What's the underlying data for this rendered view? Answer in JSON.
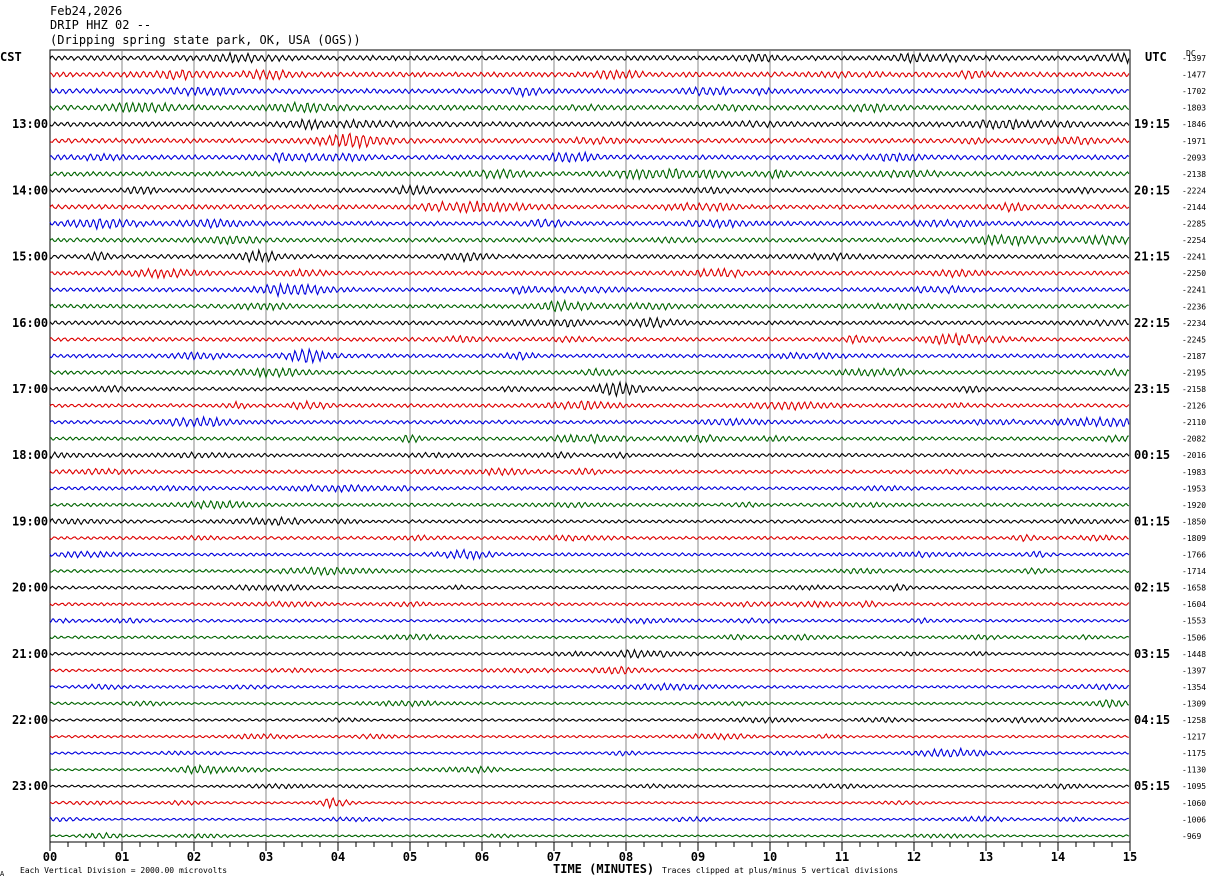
{
  "header": {
    "date": "Feb24,2026",
    "station": "DRIP HHZ 02 --",
    "location": "(Dripping spring state park, OK, USA (OGS))"
  },
  "left_axis_title": "CST",
  "right_axis_title": "UTC",
  "dc_title": "DC",
  "footer": {
    "scale_note": "Each Vertical Division = 2000.00 microvolts",
    "clip_note": "Traces clipped at plus/minus 5 vertical divisions",
    "mark": "A"
  },
  "chart_data": {
    "type": "line",
    "title": "",
    "xlabel": "TIME (MINUTES)",
    "xlim": [
      0,
      15
    ],
    "x_ticks": [
      "00",
      "01",
      "02",
      "03",
      "04",
      "05",
      "06",
      "07",
      "08",
      "09",
      "10",
      "11",
      "12",
      "13",
      "14",
      "15"
    ],
    "trace_count": 48,
    "trace_colors": [
      "#000000",
      "#dd0000",
      "#0000dd",
      "#006400"
    ],
    "left_hour_labels": [
      "13:00",
      "14:00",
      "15:00",
      "16:00",
      "17:00",
      "18:00",
      "19:00",
      "20:00",
      "21:00",
      "22:00",
      "23:00"
    ],
    "right_hour_labels": [
      "19:15",
      "20:15",
      "21:15",
      "22:15",
      "23:15",
      "00:15",
      "01:15",
      "02:15",
      "03:15",
      "04:15",
      "05:15"
    ],
    "first_labeled_trace": 4,
    "dc_offsets": [
      -1397,
      -1477,
      -1702,
      -1803,
      -1846,
      -1971,
      -2093,
      -2138,
      -2224,
      -2144,
      -2285,
      -2254,
      -2241,
      -2250,
      -2241,
      -2236,
      -2234,
      -2245,
      -2187,
      -2195,
      -2158,
      -2126,
      -2110,
      -2082,
      -2016,
      -1983,
      -1953,
      -1920,
      -1850,
      -1809,
      -1766,
      -1714,
      -1658,
      -1604,
      -1553,
      -1506,
      -1448,
      -1397,
      -1354,
      -1309,
      -1258,
      -1217,
      -1175,
      -1130,
      -1095,
      -1060,
      -1006,
      -969
    ]
  }
}
